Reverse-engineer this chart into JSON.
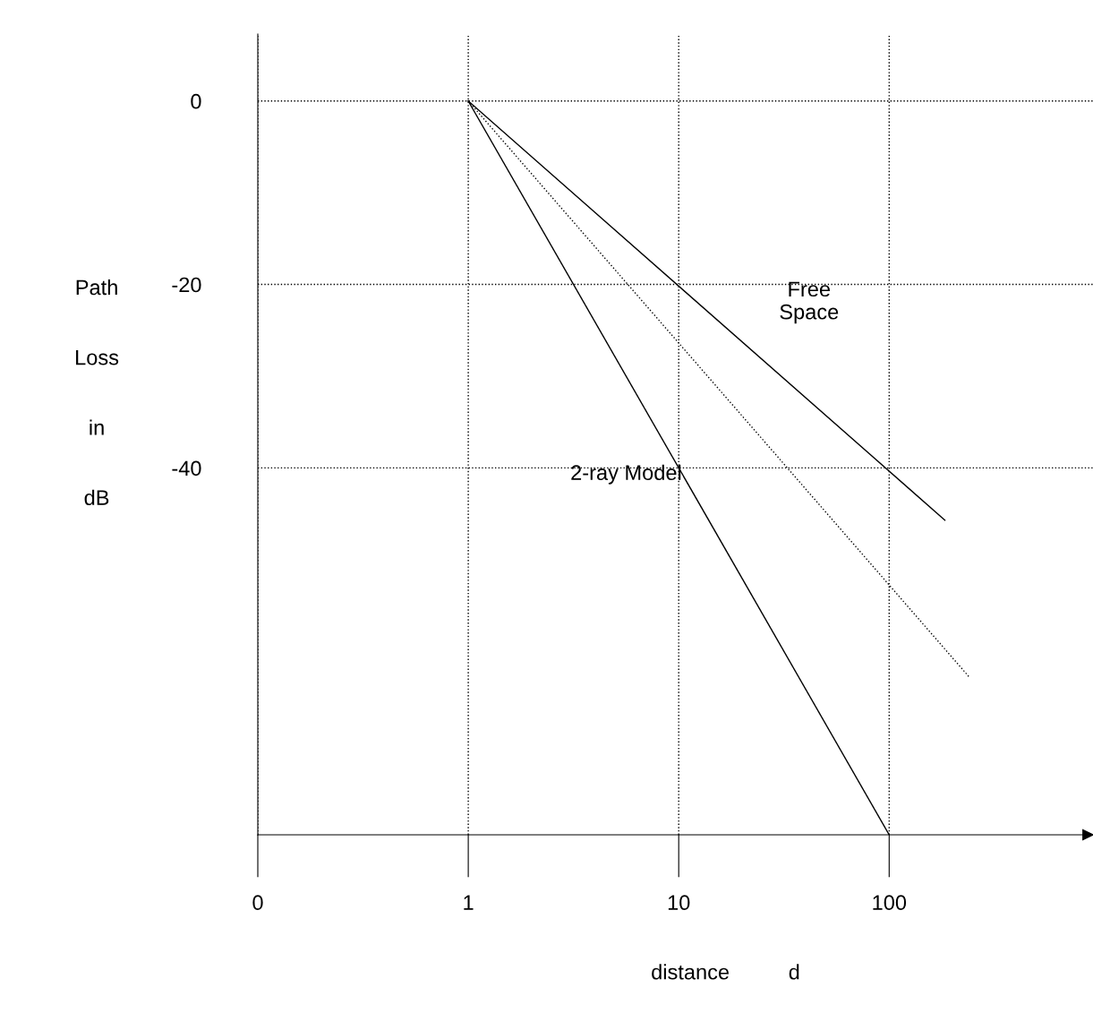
{
  "chart_data": {
    "type": "line",
    "xlabel": "distance          d",
    "ylabel": "Path\n\nLoss\n\nin\n\ndB",
    "series": [
      {
        "name": "Free\nSpace",
        "color": "#000000",
        "x": [
          1,
          184
        ],
        "values": [
          0,
          -45.7
        ]
      },
      {
        "color": "#000000",
        "x": [
          1,
          240
        ],
        "values": [
          0,
          -62.8
        ],
        "line_style": "dotted"
      },
      {
        "name": "2-ray Model",
        "color": "#000000",
        "x": [
          1,
          100
        ],
        "values": [
          0,
          -80
        ]
      }
    ],
    "log": "x",
    "xlim": [
      0,
      930
    ],
    "ylim": [
      -80,
      7.3
    ],
    "xticks": [
      0,
      1,
      10,
      100
    ],
    "yticks": [
      0,
      -20,
      -40
    ],
    "grid": true,
    "line_style": "solid",
    "marker": "none"
  }
}
